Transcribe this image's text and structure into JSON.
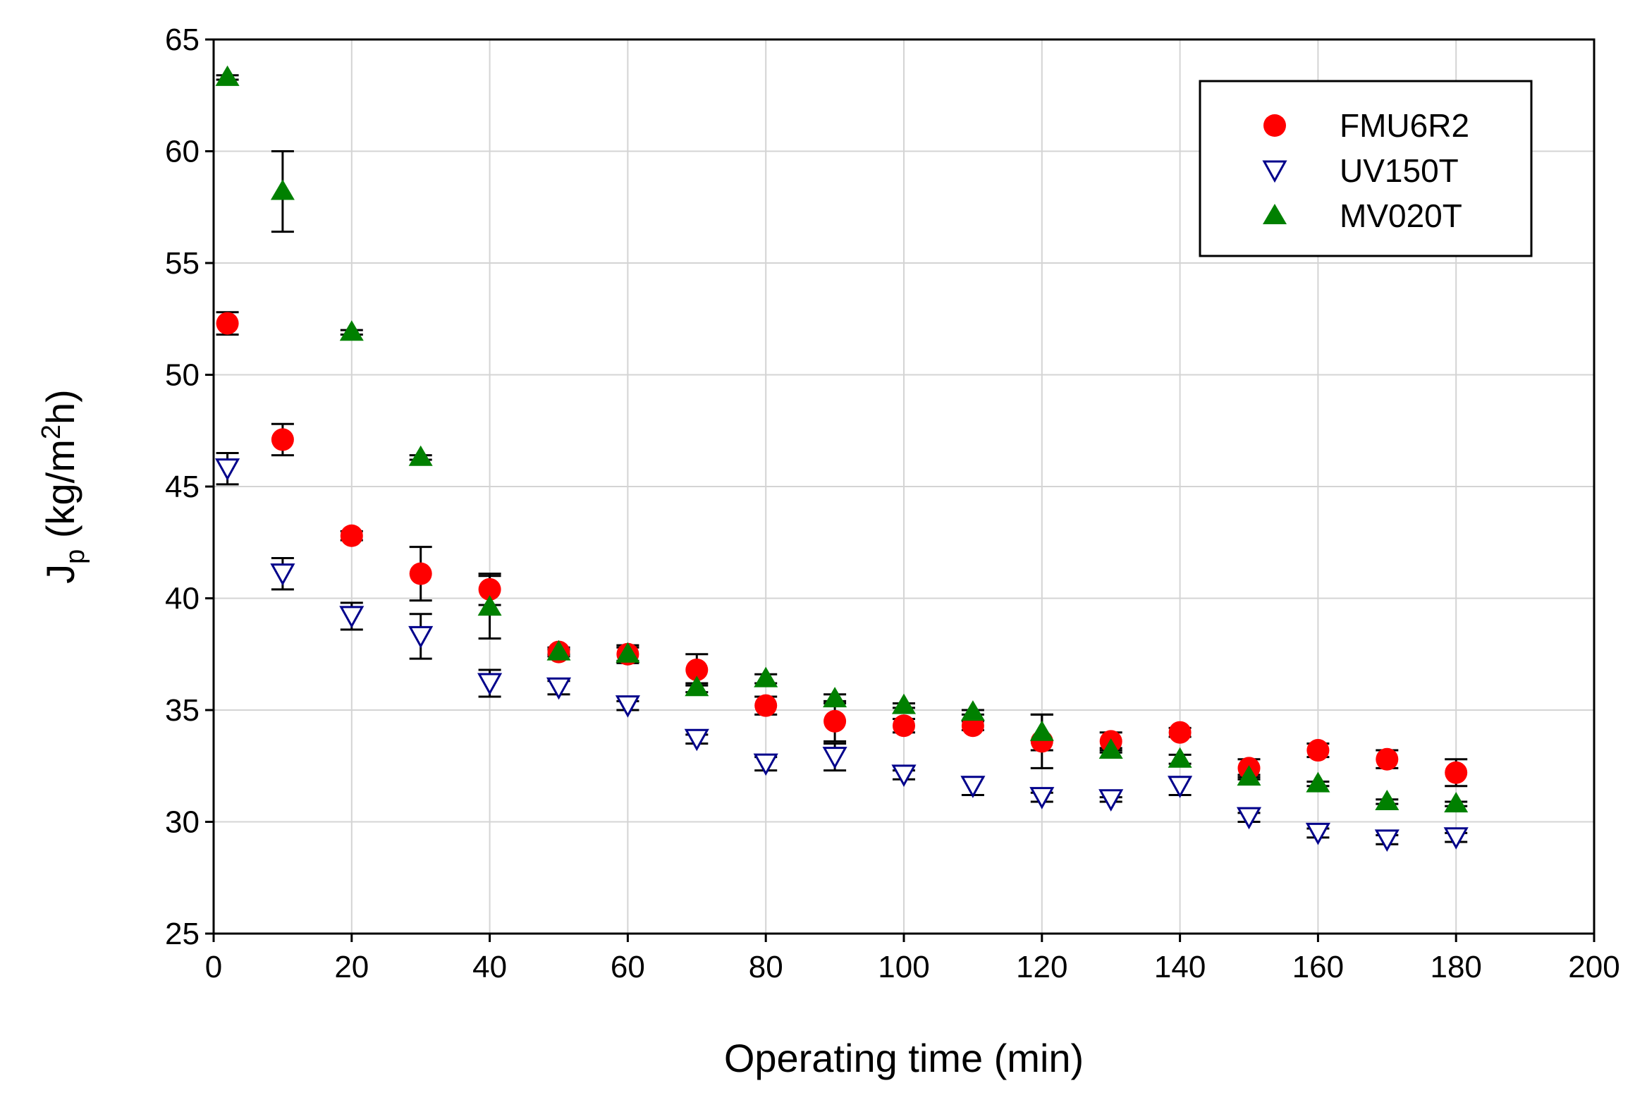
{
  "chart_data": {
    "type": "scatter",
    "title": "",
    "xlabel": "Operating time (min)",
    "ylabel": {
      "main": "J",
      "sub": "p",
      "unit_pre": " (kg/m",
      "sup": "2",
      "unit_post": "h)"
    },
    "xlim": [
      0,
      200
    ],
    "ylim": [
      25,
      65
    ],
    "xticks": [
      0,
      20,
      40,
      60,
      80,
      100,
      120,
      140,
      160,
      180,
      200
    ],
    "yticks": [
      25,
      30,
      35,
      40,
      45,
      50,
      55,
      60,
      65
    ],
    "grid": true,
    "legend_position": "top-right",
    "series": [
      {
        "name": "FMU6R2",
        "marker": "filled-circle",
        "color": "#ff0000",
        "x": [
          2,
          10,
          20,
          30,
          40,
          50,
          60,
          70,
          80,
          90,
          100,
          110,
          120,
          130,
          140,
          150,
          160,
          170,
          180
        ],
        "y": [
          52.3,
          47.1,
          42.8,
          41.1,
          40.4,
          37.6,
          37.5,
          36.8,
          35.2,
          34.5,
          34.3,
          34.3,
          33.6,
          33.6,
          34.0,
          32.4,
          33.2,
          32.8,
          32.2
        ],
        "err": [
          0.5,
          0.7,
          0.2,
          1.2,
          0.7,
          0.2,
          0.4,
          0.7,
          0.4,
          0.9,
          0.3,
          0.2,
          1.2,
          0.4,
          0.2,
          0.4,
          0.3,
          0.4,
          0.6
        ]
      },
      {
        "name": "UV150T",
        "marker": "open-triangle-down",
        "color": "#00008b",
        "x": [
          2,
          10,
          20,
          30,
          40,
          50,
          60,
          70,
          80,
          90,
          100,
          110,
          120,
          130,
          140,
          150,
          160,
          170,
          180
        ],
        "y": [
          45.8,
          41.1,
          39.2,
          38.3,
          36.2,
          36.0,
          35.2,
          33.7,
          32.6,
          32.9,
          32.1,
          31.6,
          31.1,
          31.0,
          31.6,
          30.2,
          29.5,
          29.2,
          29.3
        ],
        "err": [
          0.7,
          0.7,
          0.6,
          1.0,
          0.6,
          0.3,
          0.2,
          0.2,
          0.3,
          0.6,
          0.2,
          0.4,
          0.2,
          0.1,
          0.4,
          0.2,
          0.2,
          0.2,
          0.2
        ]
      },
      {
        "name": "MV020T",
        "marker": "filled-triangle-up",
        "color": "#008000",
        "x": [
          2,
          10,
          20,
          30,
          40,
          50,
          60,
          70,
          80,
          90,
          100,
          110,
          120,
          130,
          140,
          150,
          160,
          170,
          180
        ],
        "y": [
          63.3,
          58.2,
          51.9,
          46.3,
          39.6,
          37.6,
          37.5,
          36.0,
          36.4,
          35.5,
          35.2,
          34.9,
          34.0,
          33.2,
          32.8,
          32.0,
          31.7,
          30.9,
          30.8
        ],
        "err": [
          0.1,
          1.8,
          0.1,
          0.1,
          1.4,
          0.1,
          0.3,
          0.2,
          0.2,
          0.2,
          0.1,
          0.1,
          0.8,
          0.1,
          0.2,
          0.1,
          0.1,
          0.1,
          0.1
        ]
      }
    ]
  }
}
